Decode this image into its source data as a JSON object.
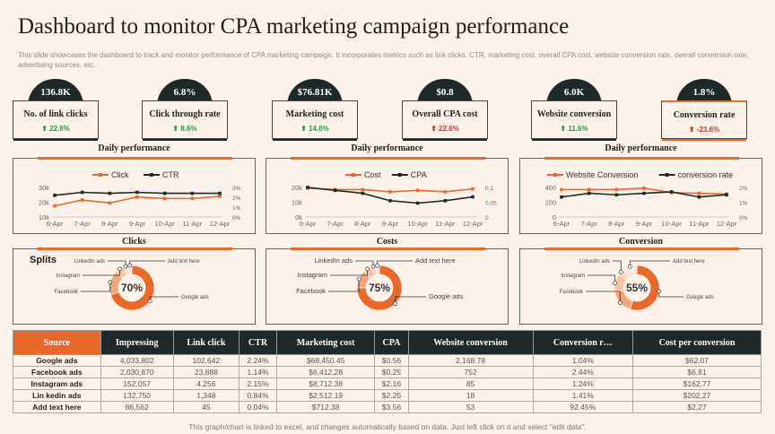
{
  "title": "Dashboard to monitor CPA marketing campaign performance",
  "subtitle": "This slide showcases the dashboard to track and monitor performance of CPA marketing campaign. It incorporates metrics such as link clicks, CTR, marketing cost, overall CPA cost, website conversion rate, overall conversion rate, advertising sources, etc.",
  "kpis": [
    {
      "value": "136.8K",
      "label": "No. of link clicks",
      "change": "⬆ 22.6%",
      "trend": "up"
    },
    {
      "value": "6.8%",
      "label": "Click through  rate",
      "change": "⬆  8.6%",
      "trend": "up"
    },
    {
      "value": "$76.81K",
      "label": "Marketing cost",
      "change": "⬆ 14.6%",
      "trend": "up"
    },
    {
      "value": "$0.8",
      "label": "Overall CPA cost",
      "change": "⬆ 22.6%",
      "trend": "down"
    },
    {
      "value": "6.0K",
      "label": "Website conversion",
      "change": "⬆ 11.6%",
      "trend": "up"
    },
    {
      "value": "1.8%",
      "label": "Conversion rate",
      "change": "⬆  -23.6%",
      "trend": "down"
    }
  ],
  "colors": {
    "accent": "#e8692a",
    "dark": "#1e2a2a",
    "up": "#1a9e4a",
    "down": "#e0262a"
  },
  "sections": {
    "daily": "Daily performance",
    "clicks": "Clicks",
    "costs": "Costs",
    "conversion": "Conversion",
    "splits": "Splits"
  },
  "chart_data": [
    {
      "type": "line",
      "categories": [
        "6-Apr",
        "7-Apr",
        "8-Apr",
        "9-Apr",
        "10-Apr",
        "11-Apr",
        "12-Apr"
      ],
      "series": [
        {
          "name": "Click",
          "axis": "left",
          "values": [
            17500,
            21500,
            19500,
            23500,
            22500,
            22500,
            24000
          ]
        },
        {
          "name": "CTR",
          "axis": "right",
          "values": [
            2.2,
            2.5,
            2.4,
            2.5,
            2.4,
            2.4,
            2.4
          ]
        }
      ],
      "left_ticks": [
        "30k",
        "20k",
        "10k"
      ],
      "ylim_left": [
        10000,
        30000
      ],
      "right_ticks": [
        "3%",
        "2%",
        "1%",
        "0%"
      ],
      "ylim_right": [
        0,
        3
      ]
    },
    {
      "type": "line",
      "categories": [
        "6-Apr",
        "7-Apr",
        "8-Apr",
        "9-Apr",
        "10-Apr",
        "11-Apr",
        "12-Apr"
      ],
      "series": [
        {
          "name": "Cost",
          "axis": "left",
          "values": [
            19500,
            18500,
            18500,
            17000,
            18000,
            17000,
            19000
          ]
        },
        {
          "name": "CPA",
          "axis": "right",
          "values": [
            0.1,
            0.09,
            0.08,
            0.055,
            0.047,
            0.055,
            0.068
          ]
        }
      ],
      "left_ticks": [
        "20k",
        "10k",
        "0k"
      ],
      "ylim_left": [
        0,
        20000
      ],
      "right_ticks": [
        "0.1",
        "0.05",
        "0"
      ],
      "ylim_right": [
        0,
        0.1
      ]
    },
    {
      "type": "line",
      "categories": [
        "6-Apr",
        "7-Apr",
        "8-Apr",
        "9-Apr",
        "10-Apr",
        "11-Apr",
        "12-Apr"
      ],
      "series": [
        {
          "name": "Website Conversion",
          "axis": "left",
          "values": [
            370,
            370,
            370,
            390,
            330,
            320,
            310
          ]
        },
        {
          "name": "conversion rate",
          "axis": "right",
          "values": [
            1.35,
            1.6,
            1.5,
            1.6,
            1.7,
            1.35,
            1.5
          ]
        }
      ],
      "left_ticks": [
        "400",
        "200",
        "0"
      ],
      "ylim_left": [
        0,
        400
      ],
      "right_ticks": [
        "2%",
        "1%",
        "0%"
      ],
      "ylim_right": [
        0,
        2
      ]
    },
    {
      "type": "pie",
      "title": "Clicks",
      "center": "70%",
      "labels": [
        "Google ads",
        "Facebook",
        "Instagram",
        "LinkedIn ads",
        "Add text here"
      ],
      "values": [
        70,
        18,
        6,
        3,
        3
      ]
    },
    {
      "type": "pie",
      "title": "Costs",
      "center": "75%",
      "labels": [
        "Google ads",
        "Facebook",
        "Instagram",
        "LinkedIn ads",
        "Add text here"
      ],
      "values": [
        75,
        13,
        6,
        3,
        3
      ]
    },
    {
      "type": "pie",
      "title": "Conversion",
      "center": "55%",
      "labels": [
        "Google ads",
        "Facebook",
        "Instagram",
        "LinkedIn ads",
        "Add text here"
      ],
      "values": [
        55,
        17,
        13,
        5,
        10
      ]
    }
  ],
  "table": {
    "headers": [
      "Source",
      "Impressing",
      "Link click",
      "CTR",
      "Marketing cost",
      "CPA",
      "Website conversion",
      "Conversion r…",
      "Cost per conversion"
    ],
    "rows": [
      [
        "Google ads",
        "4,033,802",
        "102,642",
        "2.24%",
        "$68,450.45",
        "$0.56",
        "2,168.78",
        "1.04%",
        "$62,07"
      ],
      [
        "Facebook ads",
        "2,030,870",
        "23,888",
        "1.14%",
        "$6,412.28",
        "$0.25",
        "752",
        "2.44%",
        "$6,81"
      ],
      [
        "Instagram ads",
        "152,057",
        "4,256",
        "2.15%",
        "$8,712.38",
        "$2.16",
        "85",
        "1.24%",
        "$162,77"
      ],
      [
        "Lin kedin ads",
        "132,750",
        "1,348",
        "0.84%",
        "$2,512.19",
        "$2.25",
        "18",
        "1.41%",
        "$202,27"
      ],
      [
        "Add text here",
        "86,562",
        "45",
        "0.04%",
        "$712.38",
        "$3.56",
        "53",
        "92.45%",
        "$2,27"
      ]
    ]
  },
  "footer": "This graph/chart is linked to excel, and changes automatically based on data. Just left click on it and select \"edit data\"."
}
